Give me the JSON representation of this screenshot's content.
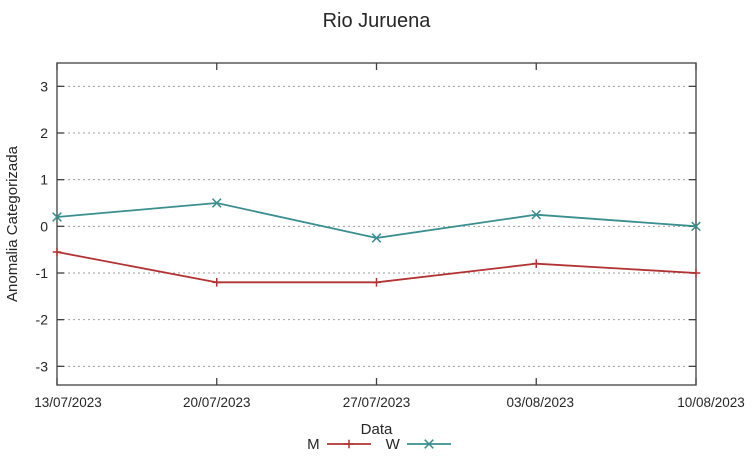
{
  "chart_data": {
    "type": "line",
    "title": "Rio Juruena",
    "xlabel": "Data",
    "ylabel": "Anomalia Categorizada",
    "categories": [
      "13/07/2023",
      "20/07/2023",
      "27/07/2023",
      "03/08/2023",
      "10/08/2023"
    ],
    "series": [
      {
        "name": "M",
        "color": "#b23232",
        "marker": "plus",
        "values": [
          -0.55,
          -1.2,
          -1.2,
          -0.8,
          -1.0
        ]
      },
      {
        "name": "W",
        "color": "#3a8e8e",
        "marker": "cross",
        "values": [
          0.2,
          0.5,
          -0.25,
          0.25,
          0.0
        ]
      }
    ],
    "yticks": [
      -3,
      -2,
      -1,
      0,
      1,
      2,
      3
    ],
    "ylim": [
      -3.4,
      3.5
    ],
    "grid": "horizontal-dotted",
    "legend_position": "below-center",
    "colors": {
      "border": "#404040",
      "gridline": "#9e9e9e",
      "text": "#262626"
    }
  }
}
